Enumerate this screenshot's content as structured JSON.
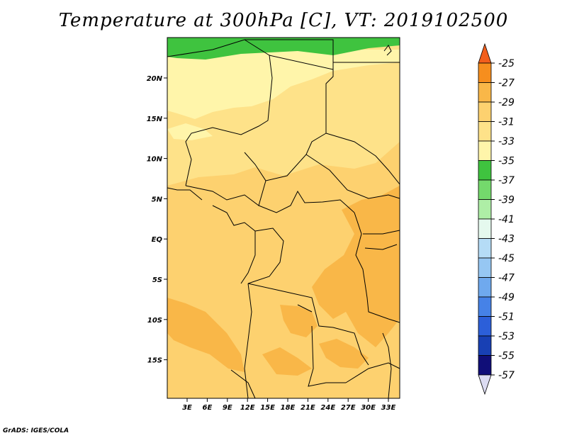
{
  "title": "Temperature at 300hPa [C], VT: 2019102500",
  "credit": "GrADS: IGES/COLA",
  "map": {
    "lon_labels": [
      "3E",
      "6E",
      "9E",
      "12E",
      "15E",
      "18E",
      "21E",
      "24E",
      "27E",
      "30E",
      "33E"
    ],
    "lat_labels": [
      "20N",
      "15N",
      "10N",
      "5N",
      "EQ",
      "5S",
      "10S",
      "15S"
    ],
    "field_colors": {
      "green": "#3fc33f",
      "light_yellow": "#fff5aa",
      "yellow": "#fee289",
      "light_orange": "#fdd16f",
      "orange": "#f9b748"
    }
  },
  "colorbar": {
    "labels": [
      "-25",
      "-27",
      "-29",
      "-31",
      "-33",
      "-35",
      "-37",
      "-39",
      "-41",
      "-43",
      "-45",
      "-47",
      "-49",
      "-51",
      "-53",
      "-55",
      "-57"
    ],
    "colors": [
      "#f25e1c",
      "#f68e1e",
      "#f9b748",
      "#fdd16f",
      "#fee289",
      "#fff5aa",
      "#3fc33f",
      "#74d96c",
      "#aeeea6",
      "#e5f9ee",
      "#b5dcf6",
      "#96c7f3",
      "#6fa9ee",
      "#4682e7",
      "#2c5fd9",
      "#1840b4",
      "#100e78",
      "#dcdcf2"
    ],
    "top_color": "#f25e1c",
    "bottom_color": "#dcdcf2"
  }
}
